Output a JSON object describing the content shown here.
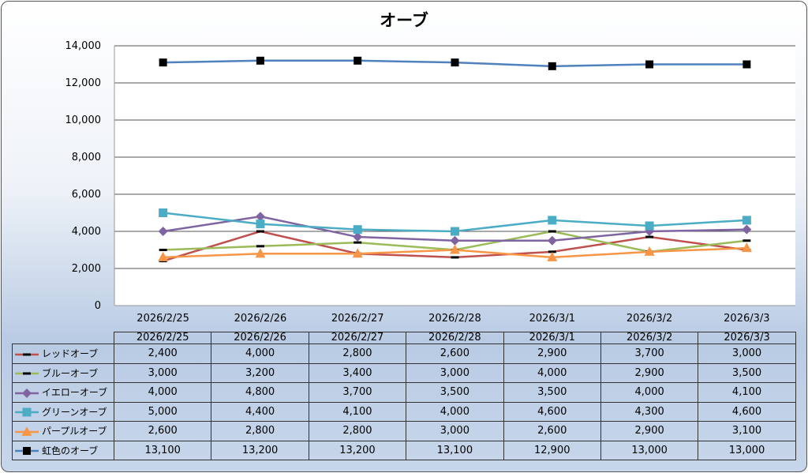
{
  "chart_data": {
    "type": "line",
    "title": "オーブ",
    "categories": [
      "2026/2/25",
      "2026/2/26",
      "2026/2/27",
      "2026/2/28",
      "2026/3/1",
      "2026/3/2",
      "2026/3/3"
    ],
    "ylim": [
      0,
      14000
    ],
    "yticks": [
      0,
      2000,
      4000,
      6000,
      8000,
      10000,
      12000,
      14000
    ],
    "ytick_labels": [
      "0",
      "2,000",
      "4,000",
      "6,000",
      "8,000",
      "10,000",
      "12,000",
      "14,000"
    ],
    "grid": true,
    "legend": "data-table",
    "series": [
      {
        "name": "レッドオーブ",
        "color": "#c0504d",
        "marker": "dash",
        "values": [
          2400,
          4000,
          2800,
          2600,
          2900,
          3700,
          3000
        ],
        "labels": [
          "2,400",
          "4,000",
          "2,800",
          "2,600",
          "2,900",
          "3,700",
          "3,000"
        ]
      },
      {
        "name": "ブルーオーブ",
        "color": "#9bbb59",
        "marker": "dash",
        "values": [
          3000,
          3200,
          3400,
          3000,
          4000,
          2900,
          3500
        ],
        "labels": [
          "3,000",
          "3,200",
          "3,400",
          "3,000",
          "4,000",
          "2,900",
          "3,500"
        ]
      },
      {
        "name": "イエローオーブ",
        "color": "#8064a2",
        "marker": "diamond",
        "values": [
          4000,
          4800,
          3700,
          3500,
          3500,
          4000,
          4100
        ],
        "labels": [
          "4,000",
          "4,800",
          "3,700",
          "3,500",
          "3,500",
          "4,000",
          "4,100"
        ]
      },
      {
        "name": "グリーンオーブ",
        "color": "#4bacc6",
        "marker": "square",
        "values": [
          5000,
          4400,
          4100,
          4000,
          4600,
          4300,
          4600
        ],
        "labels": [
          "5,000",
          "4,400",
          "4,100",
          "4,000",
          "4,600",
          "4,300",
          "4,600"
        ]
      },
      {
        "name": "パープルオーブ",
        "color": "#f79646",
        "marker": "triangle",
        "values": [
          2600,
          2800,
          2800,
          3000,
          2600,
          2900,
          3100
        ],
        "labels": [
          "2,600",
          "2,800",
          "2,800",
          "3,000",
          "2,600",
          "2,900",
          "3,100"
        ]
      },
      {
        "name": "虹色のオーブ",
        "color": "#4f81bd",
        "marker": "blacksquare",
        "values": [
          13100,
          13200,
          13200,
          13100,
          12900,
          13000,
          13000
        ],
        "labels": [
          "13,100",
          "13,200",
          "13,200",
          "13,100",
          "12,900",
          "13,000",
          "13,000"
        ]
      }
    ]
  }
}
